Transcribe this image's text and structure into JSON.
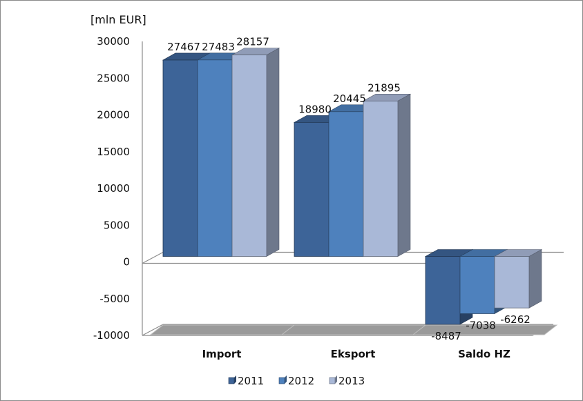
{
  "chart_data": {
    "type": "bar",
    "title": "",
    "ylabel": "[mln EUR]",
    "xlabel": "",
    "categories": [
      "Import",
      "Eksport",
      "Saldo HZ"
    ],
    "series": [
      {
        "name": "2011",
        "values": [
          27467,
          18980,
          -8487
        ],
        "color": "#3D6498"
      },
      {
        "name": "2012",
        "values": [
          27483,
          20445,
          -7038
        ],
        "color": "#4E81BD"
      },
      {
        "name": "2013",
        "values": [
          28157,
          21895,
          -6262
        ],
        "color": "#A9B8D7"
      }
    ],
    "ylim": [
      -10000,
      30000
    ],
    "yticks": [
      -10000,
      -5000,
      0,
      5000,
      10000,
      15000,
      20000,
      25000,
      30000
    ],
    "grid": false,
    "three_d": true,
    "legend_position": "bottom"
  },
  "colors": {
    "walls": "#8c8c8c",
    "floor": "#9a9a9a"
  }
}
